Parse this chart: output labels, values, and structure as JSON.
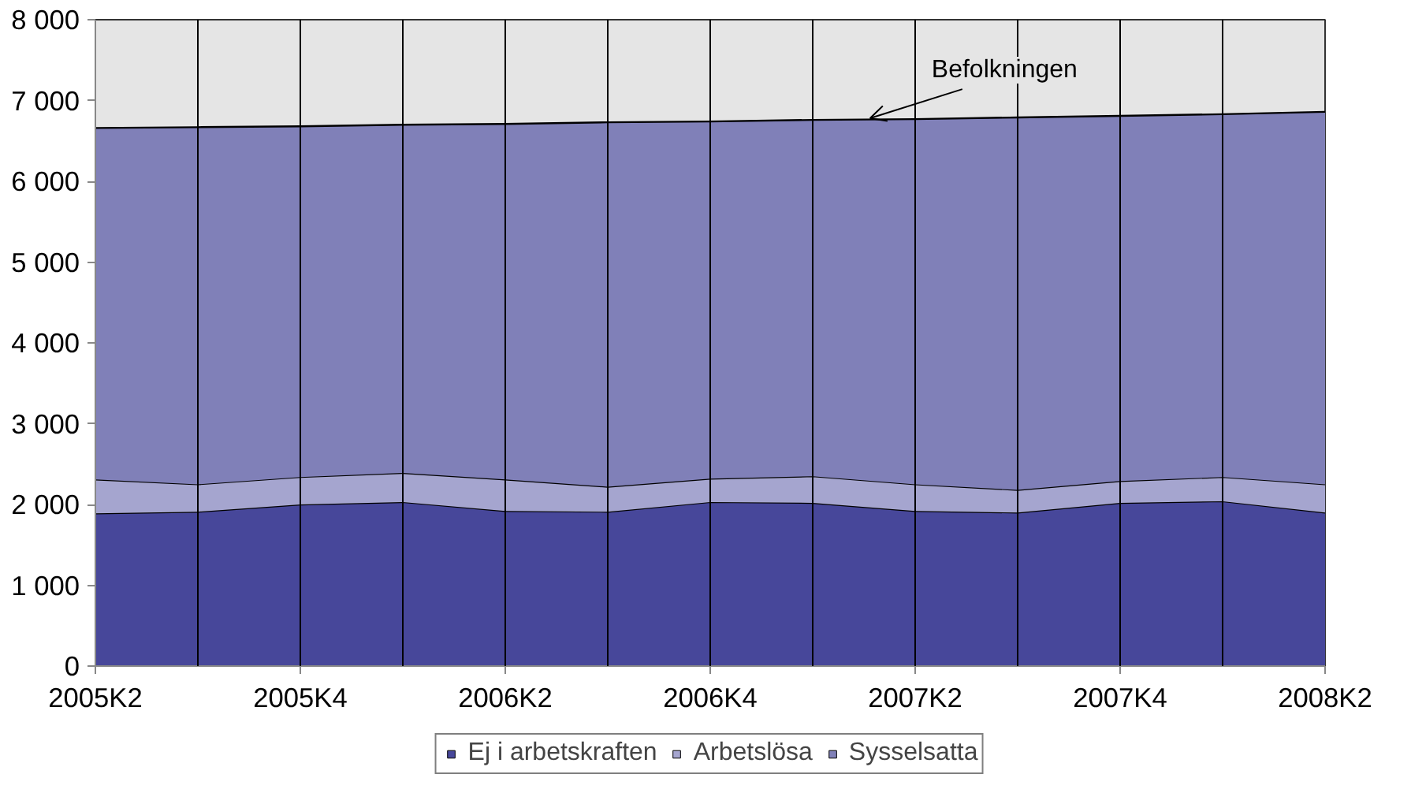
{
  "chart_data": {
    "type": "area",
    "stacked": true,
    "categories": [
      "2005K2",
      null,
      "2005K4",
      null,
      "2006K2",
      null,
      "2006K4",
      null,
      "2007K2",
      null,
      "2007K4",
      null,
      "2008K2"
    ],
    "series": [
      {
        "name": "Ej i arbetskraften",
        "color": "#47479a",
        "values": [
          1890,
          1910,
          2000,
          2030,
          1920,
          1910,
          2030,
          2020,
          1920,
          1900,
          2020,
          2040,
          1900
        ]
      },
      {
        "name": "Arbetslösa",
        "color": "#a5a5cf",
        "values": [
          420,
          340,
          340,
          360,
          390,
          310,
          290,
          330,
          330,
          280,
          270,
          300,
          350
        ]
      },
      {
        "name": "Sysselsatta",
        "color": "#8080b8",
        "values": [
          4350,
          4420,
          4340,
          4310,
          4400,
          4510,
          4420,
          4410,
          4520,
          4610,
          4520,
          4490,
          4610
        ]
      }
    ],
    "ylim": [
      0,
      8000
    ],
    "yticks": [
      {
        "value": 0,
        "label": "0"
      },
      {
        "value": 1000,
        "label": "1 000"
      },
      {
        "value": 2000,
        "label": "2 000"
      },
      {
        "value": 3000,
        "label": "3 000"
      },
      {
        "value": 4000,
        "label": "4 000"
      },
      {
        "value": 5000,
        "label": "5 000"
      },
      {
        "value": 6000,
        "label": "6 000"
      },
      {
        "value": 7000,
        "label": "7 000"
      },
      {
        "value": 8000,
        "label": "8 000"
      }
    ],
    "annotations": [
      {
        "text": "Befolkningen",
        "y": 6760
      }
    ],
    "grid": "x",
    "legend": "bottom"
  }
}
